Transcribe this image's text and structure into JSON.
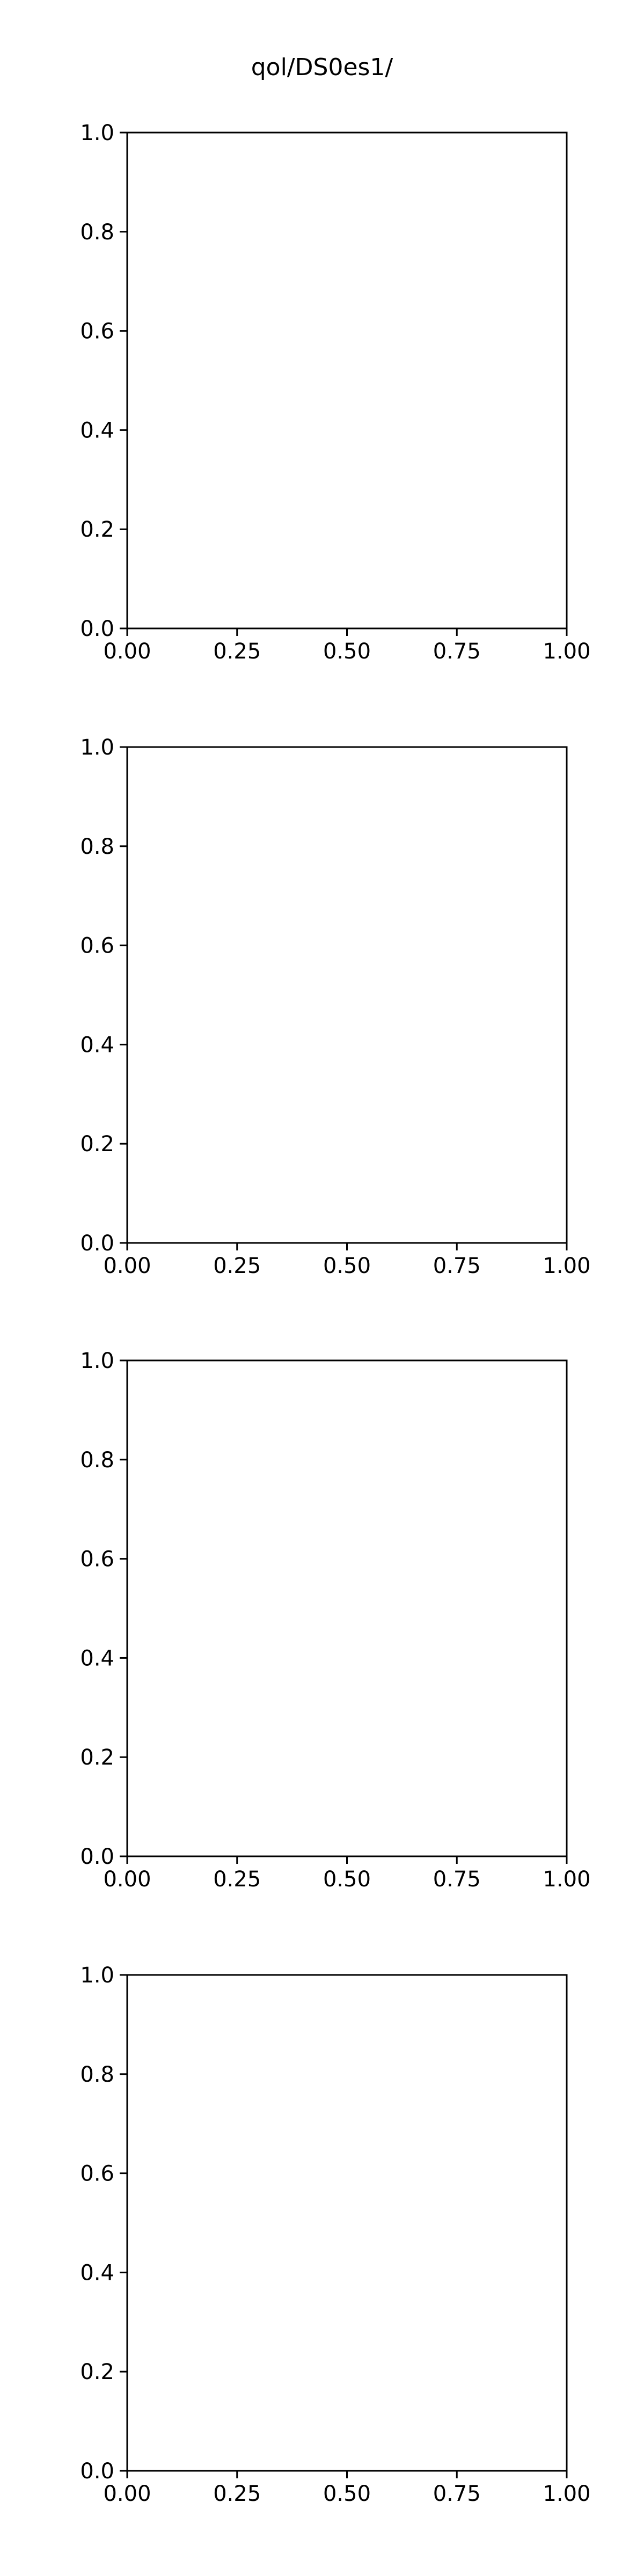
{
  "figure": {
    "title": "qol/DS0es1/"
  },
  "chart_data": [
    {
      "type": "scatter",
      "title": "",
      "xlabel": "",
      "ylabel": "",
      "xlim": [
        0,
        1
      ],
      "ylim": [
        0,
        1
      ],
      "x_ticks": [
        "0.00",
        "0.25",
        "0.50",
        "0.75",
        "1.00"
      ],
      "y_ticks": [
        "0.0",
        "0.2",
        "0.4",
        "0.6",
        "0.8",
        "1.0"
      ],
      "grid": false,
      "series": []
    },
    {
      "type": "scatter",
      "title": "",
      "xlabel": "",
      "ylabel": "",
      "xlim": [
        0,
        1
      ],
      "ylim": [
        0,
        1
      ],
      "x_ticks": [
        "0.00",
        "0.25",
        "0.50",
        "0.75",
        "1.00"
      ],
      "y_ticks": [
        "0.0",
        "0.2",
        "0.4",
        "0.6",
        "0.8",
        "1.0"
      ],
      "grid": false,
      "series": []
    },
    {
      "type": "scatter",
      "title": "",
      "xlabel": "",
      "ylabel": "",
      "xlim": [
        0,
        1
      ],
      "ylim": [
        0,
        1
      ],
      "x_ticks": [
        "0.00",
        "0.25",
        "0.50",
        "0.75",
        "1.00"
      ],
      "y_ticks": [
        "0.0",
        "0.2",
        "0.4",
        "0.6",
        "0.8",
        "1.0"
      ],
      "grid": false,
      "series": []
    },
    {
      "type": "scatter",
      "title": "",
      "xlabel": "",
      "ylabel": "",
      "xlim": [
        0,
        1
      ],
      "ylim": [
        0,
        1
      ],
      "x_ticks": [
        "0.00",
        "0.25",
        "0.50",
        "0.75",
        "1.00"
      ],
      "y_ticks": [
        "0.0",
        "0.2",
        "0.4",
        "0.6",
        "0.8",
        "1.0"
      ],
      "grid": false,
      "series": []
    }
  ]
}
